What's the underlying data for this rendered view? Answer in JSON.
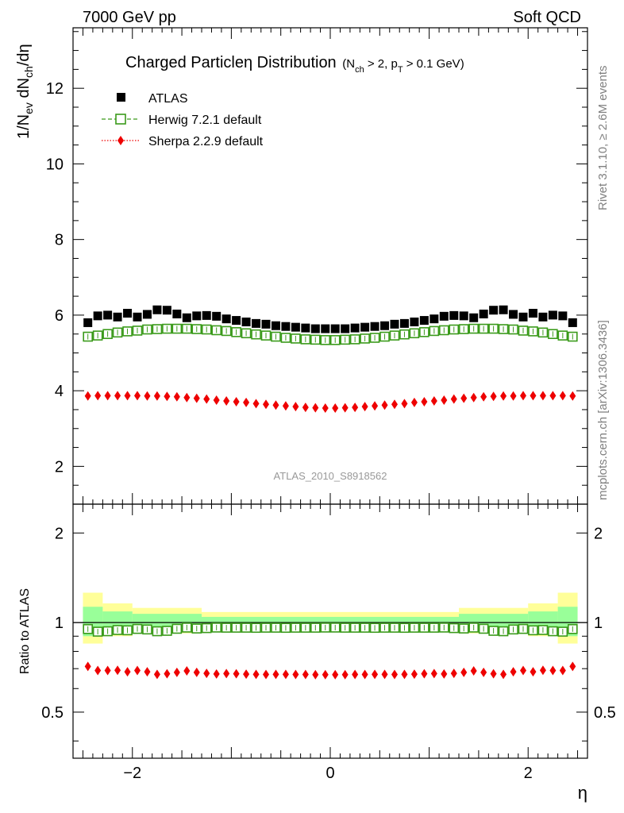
{
  "header": {
    "left": "7000 GeV pp",
    "right": "Soft QCD"
  },
  "title": {
    "main": "Charged Particleη Distribution",
    "sub": "(N_ch > 2, p_T > 0.1 GeV)"
  },
  "side_labels": {
    "rivet": "Rivet 3.1.10, ≥ 2.6M events",
    "mcplots": "mcplots.cern.ch [arXiv:1306.3436]"
  },
  "analysis_id": "ATLAS_2010_S8918562",
  "axes": {
    "ylabel_main": "1/N_ev dN_ch/dη",
    "ylabel_ratio": "Ratio to ATLAS",
    "xlabel": "η",
    "main_y_ticks": [
      "2",
      "4",
      "6",
      "8",
      "10",
      "12"
    ],
    "ratio_y_ticks": [
      "0.5",
      "1",
      "2"
    ],
    "x_ticks": [
      "−2",
      "0",
      "2"
    ]
  },
  "legend": {
    "atlas": "ATLAS",
    "herwig": "Herwig 7.2.1 default",
    "sherpa": "Sherpa 2.2.9 default"
  },
  "colors": {
    "atlas": "#000000",
    "herwig": "#3a9a1a",
    "sherpa": "#ee0000",
    "band_inner": "#99ff99",
    "band_outer": "#ffff99"
  },
  "chart_data": {
    "type": "scatter",
    "x": [
      -2.45,
      -2.35,
      -2.25,
      -2.15,
      -2.05,
      -1.95,
      -1.85,
      -1.75,
      -1.65,
      -1.55,
      -1.45,
      -1.35,
      -1.25,
      -1.15,
      -1.05,
      -0.95,
      -0.85,
      -0.75,
      -0.65,
      -0.55,
      -0.45,
      -0.35,
      -0.25,
      -0.15,
      -0.05,
      0.05,
      0.15,
      0.25,
      0.35,
      0.45,
      0.55,
      0.65,
      0.75,
      0.85,
      0.95,
      1.05,
      1.15,
      1.25,
      1.35,
      1.45,
      1.55,
      1.65,
      1.75,
      1.85,
      1.95,
      2.05,
      2.15,
      2.25,
      2.35,
      2.45
    ],
    "xlim": [
      -2.6,
      2.6
    ],
    "main_ylim": [
      1.0,
      13.6
    ],
    "ratio_ylim": [
      0.35,
      2.5
    ],
    "ratio_scale": "log",
    "series": [
      {
        "name": "ATLAS",
        "marker": "filled-square",
        "values": [
          5.8,
          5.98,
          6.0,
          5.95,
          6.05,
          5.95,
          6.02,
          6.14,
          6.13,
          6.03,
          5.93,
          5.98,
          5.99,
          5.97,
          5.9,
          5.86,
          5.82,
          5.78,
          5.76,
          5.72,
          5.7,
          5.68,
          5.66,
          5.64,
          5.64,
          5.64,
          5.64,
          5.66,
          5.68,
          5.7,
          5.72,
          5.76,
          5.78,
          5.82,
          5.86,
          5.9,
          5.97,
          5.99,
          5.98,
          5.93,
          6.03,
          6.13,
          6.14,
          6.02,
          5.95,
          6.05,
          5.95,
          6.0,
          5.98,
          5.8
        ]
      },
      {
        "name": "Herwig 7.2.1 default",
        "marker": "open-square",
        "values": [
          5.43,
          5.46,
          5.5,
          5.54,
          5.57,
          5.59,
          5.62,
          5.63,
          5.64,
          5.64,
          5.64,
          5.63,
          5.62,
          5.6,
          5.58,
          5.55,
          5.52,
          5.49,
          5.46,
          5.43,
          5.4,
          5.38,
          5.36,
          5.35,
          5.34,
          5.34,
          5.35,
          5.36,
          5.38,
          5.4,
          5.43,
          5.46,
          5.49,
          5.52,
          5.55,
          5.58,
          5.6,
          5.62,
          5.63,
          5.64,
          5.64,
          5.64,
          5.63,
          5.62,
          5.59,
          5.57,
          5.54,
          5.5,
          5.46,
          5.43
        ],
        "ratio": [
          0.951,
          0.932,
          0.935,
          0.944,
          0.942,
          0.952,
          0.948,
          0.935,
          0.938,
          0.953,
          0.962,
          0.955,
          0.958,
          0.962,
          0.961,
          0.961,
          0.961,
          0.96,
          0.961,
          0.961,
          0.96,
          0.961,
          0.961,
          0.961,
          0.962,
          0.962,
          0.961,
          0.961,
          0.961,
          0.96,
          0.961,
          0.961,
          0.96,
          0.961,
          0.961,
          0.961,
          0.962,
          0.958,
          0.955,
          0.962,
          0.953,
          0.938,
          0.935,
          0.948,
          0.952,
          0.942,
          0.944,
          0.935,
          0.932,
          0.951
        ]
      },
      {
        "name": "Sherpa 2.2.9 default",
        "marker": "filled-diamond",
        "values": [
          3.86,
          3.87,
          3.87,
          3.87,
          3.87,
          3.87,
          3.86,
          3.86,
          3.85,
          3.84,
          3.82,
          3.8,
          3.78,
          3.75,
          3.73,
          3.71,
          3.69,
          3.66,
          3.64,
          3.62,
          3.6,
          3.58,
          3.56,
          3.55,
          3.54,
          3.54,
          3.55,
          3.56,
          3.58,
          3.6,
          3.62,
          3.64,
          3.66,
          3.69,
          3.71,
          3.73,
          3.75,
          3.78,
          3.8,
          3.82,
          3.84,
          3.85,
          3.86,
          3.86,
          3.87,
          3.87,
          3.87,
          3.87,
          3.87,
          3.86
        ],
        "ratio": [
          0.712,
          0.69,
          0.69,
          0.691,
          0.683,
          0.69,
          0.683,
          0.67,
          0.673,
          0.68,
          0.688,
          0.68,
          0.675,
          0.672,
          0.674,
          0.673,
          0.671,
          0.67,
          0.669,
          0.67,
          0.67,
          0.669,
          0.669,
          0.668,
          0.668,
          0.668,
          0.668,
          0.669,
          0.669,
          0.67,
          0.67,
          0.669,
          0.67,
          0.671,
          0.673,
          0.674,
          0.672,
          0.675,
          0.68,
          0.688,
          0.68,
          0.673,
          0.67,
          0.683,
          0.69,
          0.683,
          0.691,
          0.69,
          0.69,
          0.712
        ]
      }
    ],
    "ratio_band_inner": [
      {
        "x0": -2.5,
        "x1": -2.3,
        "lo": 0.9,
        "hi": 1.13
      },
      {
        "x0": -2.3,
        "x1": -2.0,
        "lo": 0.93,
        "hi": 1.09
      },
      {
        "x0": -2.0,
        "x1": -1.3,
        "lo": 0.94,
        "hi": 1.07
      },
      {
        "x0": -1.3,
        "x1": 1.3,
        "lo": 0.96,
        "hi": 1.045
      },
      {
        "x0": 1.3,
        "x1": 2.0,
        "lo": 0.94,
        "hi": 1.07
      },
      {
        "x0": 2.0,
        "x1": 2.3,
        "lo": 0.93,
        "hi": 1.09
      },
      {
        "x0": 2.3,
        "x1": 2.5,
        "lo": 0.9,
        "hi": 1.13
      }
    ],
    "ratio_band_outer": [
      {
        "x0": -2.5,
        "x1": -2.3,
        "lo": 0.85,
        "hi": 1.26
      },
      {
        "x0": -2.3,
        "x1": -2.0,
        "lo": 0.9,
        "hi": 1.16
      },
      {
        "x0": -2.0,
        "x1": -1.3,
        "lo": 0.92,
        "hi": 1.12
      },
      {
        "x0": -1.3,
        "x1": 1.3,
        "lo": 0.94,
        "hi": 1.085
      },
      {
        "x0": 1.3,
        "x1": 2.0,
        "lo": 0.92,
        "hi": 1.12
      },
      {
        "x0": 2.0,
        "x1": 2.3,
        "lo": 0.9,
        "hi": 1.16
      },
      {
        "x0": 2.3,
        "x1": 2.5,
        "lo": 0.85,
        "hi": 1.26
      }
    ]
  }
}
